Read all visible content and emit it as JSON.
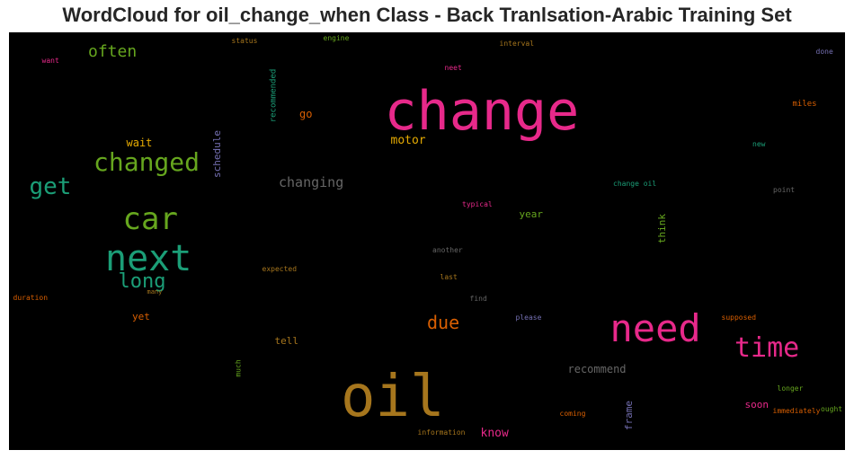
{
  "title": "WordCloud for oil_change_when Class - Back Tranlsation-Arabic Training Set",
  "chart_data": {
    "type": "wordcloud",
    "background": "#000000",
    "words": [
      {
        "text": "change",
        "size": 60,
        "color": "#e7298a",
        "rotate": 0
      },
      {
        "text": "oil",
        "size": 64,
        "color": "#a6761d",
        "rotate": 0
      },
      {
        "text": "need",
        "size": 42,
        "color": "#e7298a",
        "rotate": 0
      },
      {
        "text": "next",
        "size": 40,
        "color": "#1b9e77",
        "rotate": 0
      },
      {
        "text": "car",
        "size": 34,
        "color": "#66a61e",
        "rotate": 0
      },
      {
        "text": "time",
        "size": 30,
        "color": "#e7298a",
        "rotate": 0
      },
      {
        "text": "changed",
        "size": 28,
        "color": "#66a61e",
        "rotate": 0
      },
      {
        "text": "get",
        "size": 26,
        "color": "#1b9e77",
        "rotate": 0
      },
      {
        "text": "long",
        "size": 22,
        "color": "#1b9e77",
        "rotate": 0
      },
      {
        "text": "often",
        "size": 18,
        "color": "#66a61e",
        "rotate": 0
      },
      {
        "text": "due",
        "size": 20,
        "color": "#d95f02",
        "rotate": 0
      },
      {
        "text": "changing",
        "size": 15,
        "color": "#666666",
        "rotate": 0
      },
      {
        "text": "motor",
        "size": 13,
        "color": "#e6ab02",
        "rotate": 0
      },
      {
        "text": "wait",
        "size": 12,
        "color": "#e6ab02",
        "rotate": 0
      },
      {
        "text": "go",
        "size": 12,
        "color": "#d95f02",
        "rotate": 0
      },
      {
        "text": "know",
        "size": 13,
        "color": "#e7298a",
        "rotate": 0
      },
      {
        "text": "recommend",
        "size": 12,
        "color": "#666666",
        "rotate": 0
      },
      {
        "text": "tell",
        "size": 11,
        "color": "#a6761d",
        "rotate": 0
      },
      {
        "text": "yet",
        "size": 11,
        "color": "#d95f02",
        "rotate": 0
      },
      {
        "text": "year",
        "size": 11,
        "color": "#66a61e",
        "rotate": 0
      },
      {
        "text": "soon",
        "size": 11,
        "color": "#e7298a",
        "rotate": 0
      },
      {
        "text": "schedule",
        "size": 11,
        "color": "#7570b3",
        "rotate": -90
      },
      {
        "text": "think",
        "size": 11,
        "color": "#66a61e",
        "rotate": -90
      },
      {
        "text": "frame",
        "size": 11,
        "color": "#7570b3",
        "rotate": -90
      },
      {
        "text": "recommended",
        "size": 9,
        "color": "#1b9e77",
        "rotate": -90
      },
      {
        "text": "much",
        "size": 8,
        "color": "#66a61e",
        "rotate": -90
      },
      {
        "text": "status",
        "size": 8,
        "color": "#a6761d",
        "rotate": 0
      },
      {
        "text": "engine",
        "size": 8,
        "color": "#66a61e",
        "rotate": 0
      },
      {
        "text": "interval",
        "size": 8,
        "color": "#a6761d",
        "rotate": 0
      },
      {
        "text": "done",
        "size": 8,
        "color": "#7570b3",
        "rotate": 0
      },
      {
        "text": "want",
        "size": 8,
        "color": "#e7298a",
        "rotate": 0
      },
      {
        "text": "neet",
        "size": 8,
        "color": "#e7298a",
        "rotate": 0
      },
      {
        "text": "miles",
        "size": 9,
        "color": "#d95f02",
        "rotate": 0
      },
      {
        "text": "new",
        "size": 8,
        "color": "#1b9e77",
        "rotate": 0
      },
      {
        "text": "change oil",
        "size": 8,
        "color": "#1b9e77",
        "rotate": 0
      },
      {
        "text": "point",
        "size": 8,
        "color": "#666666",
        "rotate": 0
      },
      {
        "text": "typical",
        "size": 8,
        "color": "#e7298a",
        "rotate": 0
      },
      {
        "text": "another",
        "size": 8,
        "color": "#666666",
        "rotate": 0
      },
      {
        "text": "expected",
        "size": 8,
        "color": "#a6761d",
        "rotate": 0
      },
      {
        "text": "last",
        "size": 8,
        "color": "#a6761d",
        "rotate": 0
      },
      {
        "text": "duration",
        "size": 8,
        "color": "#d95f02",
        "rotate": 0
      },
      {
        "text": "many",
        "size": 7,
        "color": "#a6761d",
        "rotate": 0
      },
      {
        "text": "find",
        "size": 8,
        "color": "#666666",
        "rotate": 0
      },
      {
        "text": "please",
        "size": 8,
        "color": "#7570b3",
        "rotate": 0
      },
      {
        "text": "supposed",
        "size": 8,
        "color": "#d95f02",
        "rotate": 0
      },
      {
        "text": "longer",
        "size": 8,
        "color": "#66a61e",
        "rotate": 0
      },
      {
        "text": "immediately",
        "size": 8,
        "color": "#d95f02",
        "rotate": 0
      },
      {
        "text": "ought",
        "size": 8,
        "color": "#66a61e",
        "rotate": 0
      },
      {
        "text": "coming",
        "size": 8,
        "color": "#d95f02",
        "rotate": 0
      },
      {
        "text": "information",
        "size": 8,
        "color": "#a6761d",
        "rotate": 0
      }
    ]
  }
}
